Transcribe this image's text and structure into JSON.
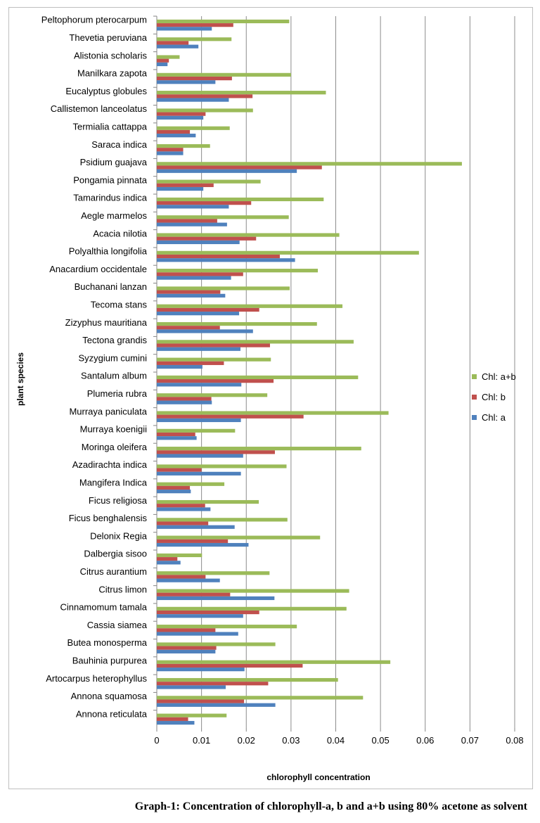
{
  "caption": "Graph-1: Concentration of chlorophyll-a, b and a+b using 80% acetone as solvent",
  "chart_data": {
    "type": "bar",
    "orientation": "horizontal",
    "title": "",
    "xlabel": "chlorophyll concentration",
    "ylabel": "plant species",
    "xlim": [
      0,
      0.08
    ],
    "xticks": [
      "0",
      "0.01",
      "0.02",
      "0.03",
      "0.04",
      "0.05",
      "0.06",
      "0.07",
      "0.08"
    ],
    "grid": "vertical",
    "legend_position": "right",
    "categories": [
      "Peltophorum pterocarpum",
      "Thevetia peruviana",
      "Alistonia scholaris",
      "Manilkara zapota",
      "Eucalyptus globules",
      "Callistemon lanceolatus",
      "Termialia cattappa",
      "Saraca indica",
      "Psidium guajava",
      "Pongamia pinnata",
      "Tamarindus indica",
      "Aegle marmelos",
      "Acacia nilotia",
      "Polyalthia longifolia",
      "Anacardium occidentale",
      "Buchanani lanzan",
      "Tecoma stans",
      "Zizyphus mauritiana",
      "Tectona grandis",
      "Syzygium cumini",
      "Santalum album",
      "Plumeria rubra",
      "Murraya paniculata",
      "Murraya koenigii",
      "Moringa oleifera",
      "Azadirachta indica",
      "Mangifera Indica",
      "Ficus religiosa",
      "Ficus benghalensis",
      "Delonix Regia",
      "Dalbergia sisoo",
      "Citrus aurantium",
      "Citrus limon",
      "Cinnamomum tamala",
      "Cassia siamea",
      "Butea monosperma",
      "Bauhinia purpurea",
      "Artocarpus heterophyllus",
      "Annona  squamosa",
      "Annona  reticulata"
    ],
    "series": [
      {
        "name": "Chl: a+b",
        "color": "#9bbb59",
        "values": [
          0.0296,
          0.0167,
          0.0051,
          0.03,
          0.0378,
          0.0215,
          0.0163,
          0.0119,
          0.0682,
          0.0232,
          0.0373,
          0.0295,
          0.0408,
          0.0586,
          0.036,
          0.0297,
          0.0415,
          0.0358,
          0.044,
          0.0255,
          0.045,
          0.0247,
          0.0518,
          0.0175,
          0.0457,
          0.029,
          0.0151,
          0.0228,
          0.0292,
          0.0365,
          0.0101,
          0.0252,
          0.043,
          0.0424,
          0.0313,
          0.0265,
          0.0522,
          0.0405,
          0.0461,
          0.0156
        ]
      },
      {
        "name": "Chl: b",
        "color": "#c0504d",
        "values": [
          0.0171,
          0.0071,
          0.0027,
          0.0168,
          0.0214,
          0.0109,
          0.0074,
          0.0059,
          0.0369,
          0.0127,
          0.0211,
          0.0135,
          0.0222,
          0.0275,
          0.0193,
          0.0142,
          0.0229,
          0.0141,
          0.0253,
          0.015,
          0.0261,
          0.0122,
          0.0328,
          0.0086,
          0.0264,
          0.01,
          0.0074,
          0.0108,
          0.0115,
          0.0159,
          0.0046,
          0.0109,
          0.0164,
          0.0229,
          0.0131,
          0.0133,
          0.0326,
          0.0249,
          0.0195,
          0.007
        ]
      },
      {
        "name": "Chl: a",
        "color": "#4f81bd",
        "values": [
          0.0123,
          0.0093,
          0.0024,
          0.0131,
          0.0161,
          0.0104,
          0.0087,
          0.0059,
          0.0313,
          0.0104,
          0.0161,
          0.0157,
          0.0185,
          0.0309,
          0.0166,
          0.0153,
          0.0184,
          0.0215,
          0.0187,
          0.0102,
          0.0189,
          0.0123,
          0.0188,
          0.0089,
          0.0193,
          0.0188,
          0.0076,
          0.012,
          0.0174,
          0.0205,
          0.0053,
          0.0141,
          0.0263,
          0.0193,
          0.0182,
          0.0131,
          0.0196,
          0.0154,
          0.0265,
          0.0084
        ]
      }
    ]
  }
}
